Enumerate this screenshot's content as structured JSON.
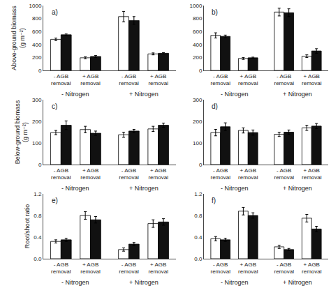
{
  "chart_data": [
    {
      "type": "bar",
      "title": "a)",
      "ylabel": "Above-ground biomass\n(g m⁻²)",
      "categories": [
        "- AGB\nremoval",
        "+ AGB\nremoval",
        "- AGB\nremoval",
        "+ AGB\nremoval"
      ],
      "series": [
        {
          "color": "#ffffff",
          "values": [
            480,
            195,
            830,
            255
          ],
          "errors": [
            20,
            15,
            80,
            15
          ]
        },
        {
          "color": "#111111",
          "values": [
            550,
            215,
            770,
            265
          ],
          "errors": [
            12,
            15,
            60,
            10
          ]
        }
      ],
      "ylim": [
        0,
        1000
      ],
      "yticks": [
        0,
        200,
        400,
        600,
        800,
        1000
      ],
      "grid": false,
      "annotations": [
        "- Nitrogen",
        "+ Nitrogen"
      ]
    },
    {
      "type": "bar",
      "title": "b)",
      "categories": [
        "- AGB\nremoval",
        "+ AGB\nremoval",
        "- AGB\nremoval",
        "+ AGB\nremoval"
      ],
      "series": [
        {
          "color": "#ffffff",
          "values": [
            540,
            185,
            900,
            220
          ],
          "errors": [
            40,
            15,
            60,
            20
          ]
        },
        {
          "color": "#111111",
          "values": [
            525,
            195,
            890,
            300
          ],
          "errors": [
            20,
            10,
            60,
            35
          ]
        }
      ],
      "ylim": [
        0,
        1000
      ],
      "yticks": [
        0,
        200,
        400,
        600,
        800,
        1000
      ],
      "grid": false,
      "annotations": [
        "- Nitrogen",
        "+ Nitrogen"
      ]
    },
    {
      "type": "bar",
      "title": "c)",
      "ylabel": "Below-ground biomass\n(g m⁻²)",
      "categories": [
        "- AGB\nremoval",
        "+ AGB\nremoval",
        "- AGB\nremoval",
        "+ AGB\nremoval"
      ],
      "series": [
        {
          "color": "#ffffff",
          "values": [
            148,
            162,
            138,
            165
          ],
          "errors": [
            10,
            15,
            12,
            12
          ]
        },
        {
          "color": "#111111",
          "values": [
            182,
            145,
            155,
            182
          ],
          "errors": [
            20,
            10,
            8,
            10
          ]
        }
      ],
      "ylim": [
        0,
        300
      ],
      "yticks": [
        0,
        100,
        200,
        300
      ],
      "grid": false,
      "annotations": [
        "- Nitrogen",
        "+ Nitrogen"
      ]
    },
    {
      "type": "bar",
      "title": "d)",
      "categories": [
        "- AGB\nremoval",
        "+ AGB\nremoval",
        "- AGB\nremoval",
        "+ AGB\nremoval"
      ],
      "series": [
        {
          "color": "#ffffff",
          "values": [
            148,
            158,
            140,
            170
          ],
          "errors": [
            15,
            12,
            10,
            12
          ]
        },
        {
          "color": "#111111",
          "values": [
            175,
            148,
            150,
            178
          ],
          "errors": [
            18,
            12,
            10,
            12
          ]
        }
      ],
      "ylim": [
        0,
        300
      ],
      "yticks": [
        0,
        100,
        200,
        300
      ],
      "grid": false,
      "annotations": [
        "- Nitrogen",
        "+ Nitrogen"
      ]
    },
    {
      "type": "bar",
      "title": "e)",
      "ylabel": "Root/shoot ratio",
      "categories": [
        "- AGB\nremoval",
        "+ AGB\nremoval",
        "- AGB\nremoval",
        "+ AGB\nremoval"
      ],
      "series": [
        {
          "color": "#ffffff",
          "values": [
            0.32,
            0.8,
            0.17,
            0.65
          ],
          "errors": [
            0.03,
            0.07,
            0.03,
            0.07
          ]
        },
        {
          "color": "#111111",
          "values": [
            0.35,
            0.72,
            0.27,
            0.68
          ],
          "errors": [
            0.03,
            0.06,
            0.03,
            0.06
          ]
        }
      ],
      "ylim": [
        0,
        1.2
      ],
      "yticks": [
        {
          "value": 0,
          "label": "0.0"
        },
        0.4,
        0.8,
        1.2
      ],
      "grid": false,
      "annotations": [
        "- Nitrogen",
        "+ Nitrogen"
      ]
    },
    {
      "type": "bar",
      "title": "f)",
      "categories": [
        "- AGB\nremoval",
        "+ AGB\nremoval",
        "- AGB\nremoval",
        "+ AGB\nremoval"
      ],
      "series": [
        {
          "color": "#ffffff",
          "values": [
            0.37,
            0.88,
            0.22,
            0.75
          ],
          "errors": [
            0.04,
            0.07,
            0.03,
            0.07
          ]
        },
        {
          "color": "#111111",
          "values": [
            0.35,
            0.8,
            0.17,
            0.55
          ],
          "errors": [
            0.03,
            0.05,
            0.02,
            0.05
          ]
        }
      ],
      "ylim": [
        0,
        1.2
      ],
      "yticks": [
        {
          "value": 0,
          "label": "0.0"
        },
        0.4,
        0.8,
        1.2
      ],
      "grid": false,
      "annotations": [
        "- Nitrogen",
        "+ Nitrogen"
      ]
    }
  ]
}
